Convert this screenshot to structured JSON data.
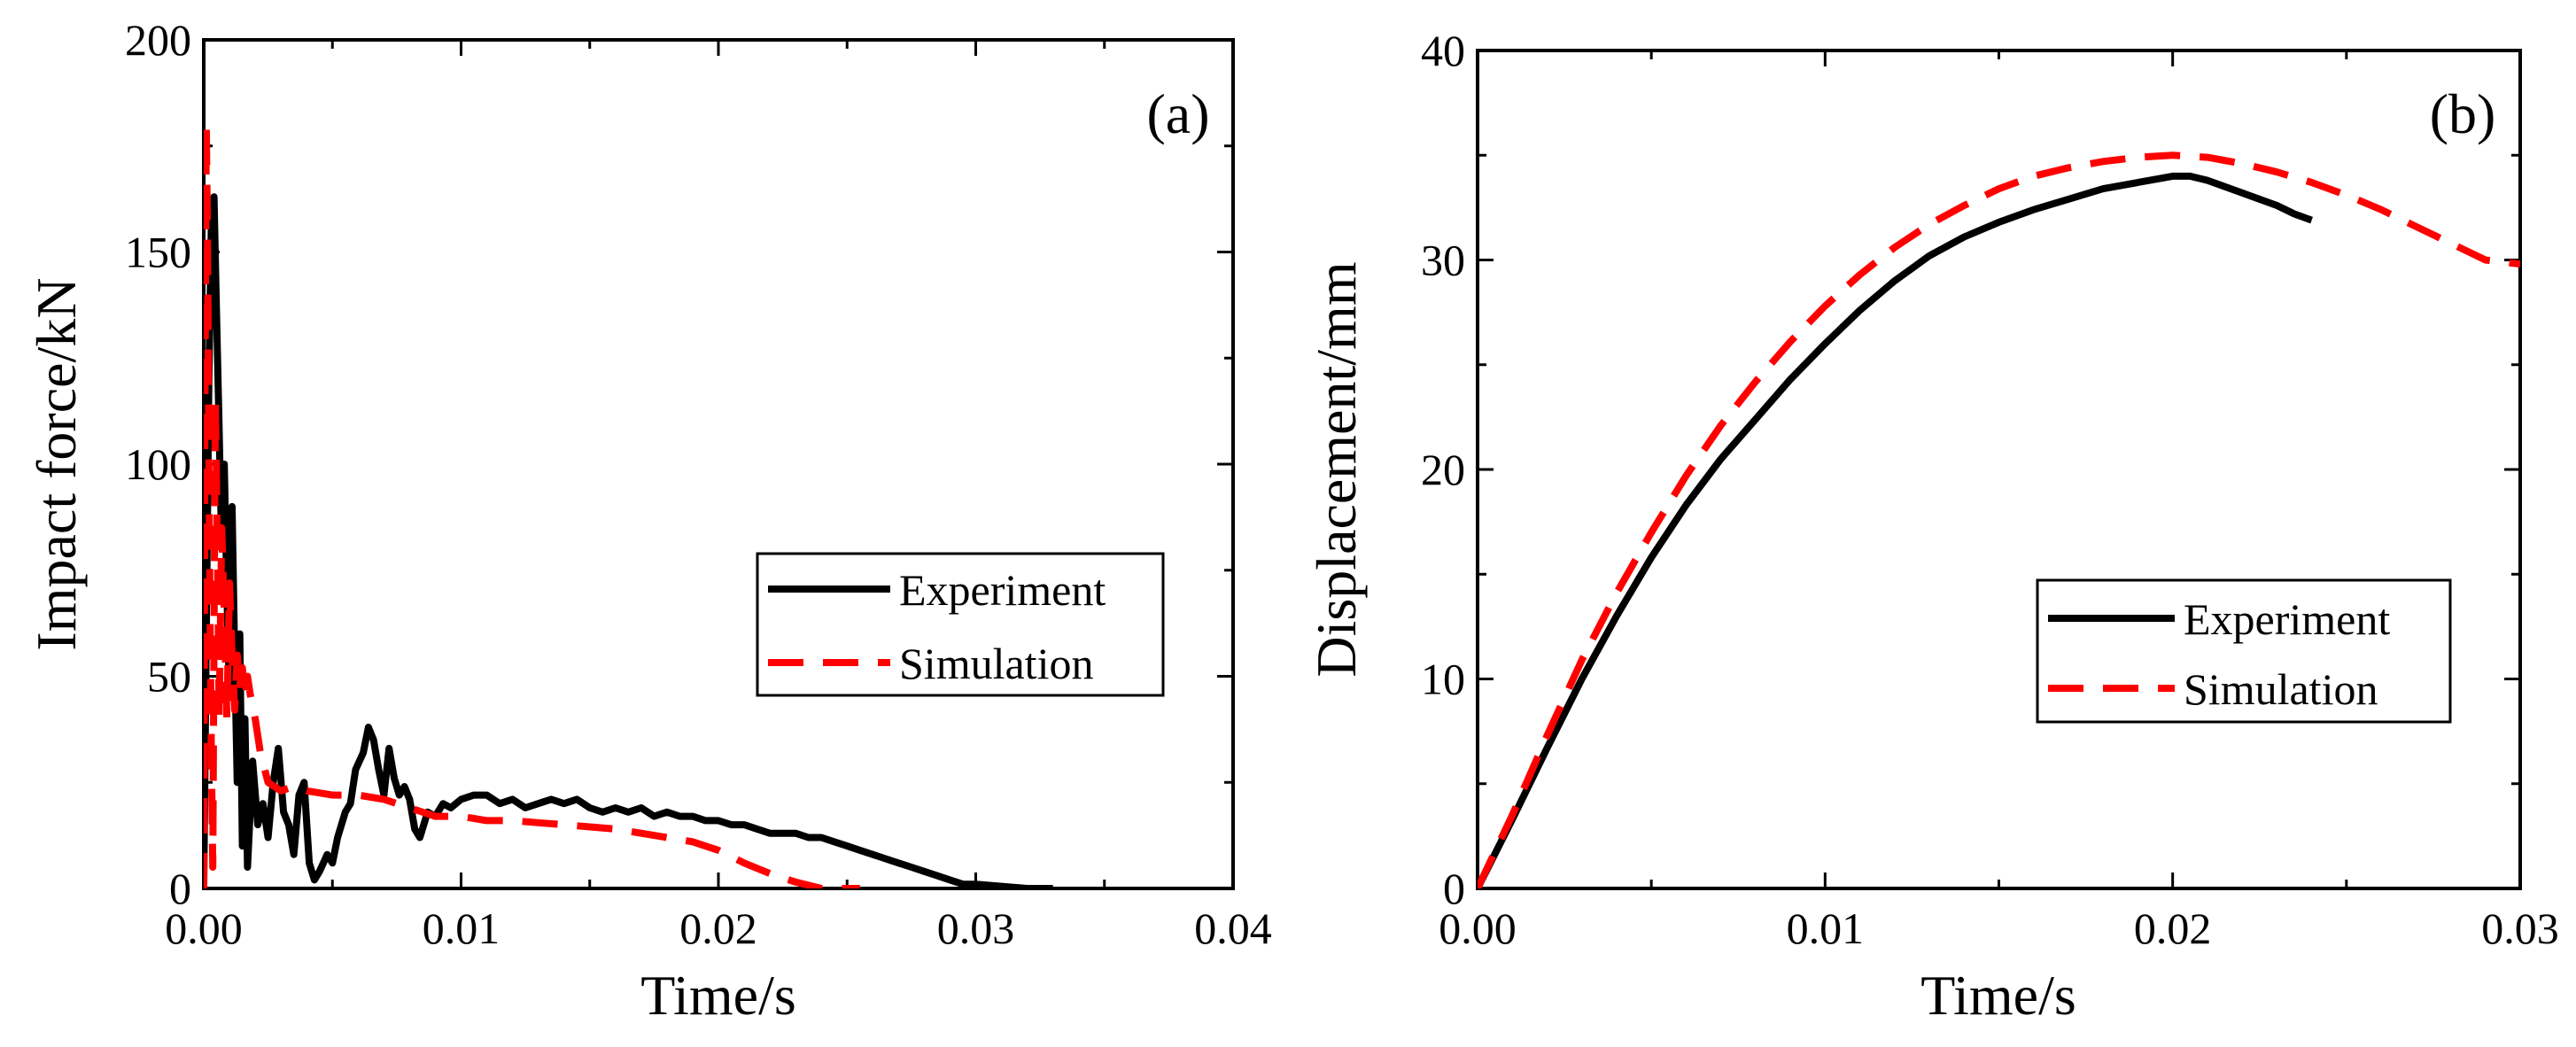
{
  "colors": {
    "experiment": "#000000",
    "simulation": "#ff0000",
    "axis": "#000000",
    "background": "#ffffff"
  },
  "chart_data": [
    {
      "type": "line",
      "panel_label": "(a)",
      "title": "",
      "xlabel": "Time/s",
      "ylabel": "Impact force/kN",
      "xlim": [
        0,
        0.04
      ],
      "ylim": [
        0,
        200
      ],
      "x_ticks": [
        "0.00",
        "0.01",
        "0.02",
        "0.03",
        "0.04"
      ],
      "y_ticks": [
        "0",
        "50",
        "100",
        "150",
        "200"
      ],
      "grid": false,
      "legend_position": "center-right",
      "series": [
        {
          "name": "Experiment",
          "style": "solid",
          "points": [
            [
              0.0,
              0
            ],
            [
              0.0001,
              60
            ],
            [
              0.0002,
              120
            ],
            [
              0.0003,
              158
            ],
            [
              0.0004,
              163
            ],
            [
              0.0005,
              135
            ],
            [
              0.0006,
              108
            ],
            [
              0.0007,
              80
            ],
            [
              0.0008,
              100
            ],
            [
              0.0009,
              70
            ],
            [
              0.001,
              45
            ],
            [
              0.0011,
              90
            ],
            [
              0.0012,
              55
            ],
            [
              0.0013,
              25
            ],
            [
              0.0014,
              60
            ],
            [
              0.0015,
              10
            ],
            [
              0.0016,
              40
            ],
            [
              0.0017,
              5
            ],
            [
              0.0019,
              30
            ],
            [
              0.0021,
              15
            ],
            [
              0.0023,
              20
            ],
            [
              0.0025,
              12
            ],
            [
              0.0027,
              25
            ],
            [
              0.0029,
              33
            ],
            [
              0.0031,
              18
            ],
            [
              0.0033,
              15
            ],
            [
              0.0035,
              8
            ],
            [
              0.0037,
              22
            ],
            [
              0.0039,
              25
            ],
            [
              0.0041,
              6
            ],
            [
              0.0043,
              2
            ],
            [
              0.0045,
              4
            ],
            [
              0.0048,
              8
            ],
            [
              0.005,
              6
            ],
            [
              0.0052,
              12
            ],
            [
              0.0055,
              18
            ],
            [
              0.0057,
              20
            ],
            [
              0.0059,
              28
            ],
            [
              0.0062,
              32
            ],
            [
              0.0064,
              38
            ],
            [
              0.0066,
              35
            ],
            [
              0.0068,
              28
            ],
            [
              0.007,
              22
            ],
            [
              0.0072,
              33
            ],
            [
              0.0074,
              26
            ],
            [
              0.0076,
              22
            ],
            [
              0.0078,
              24
            ],
            [
              0.008,
              21
            ],
            [
              0.0082,
              14
            ],
            [
              0.0084,
              12
            ],
            [
              0.0087,
              18
            ],
            [
              0.009,
              17
            ],
            [
              0.0093,
              20
            ],
            [
              0.0096,
              19
            ],
            [
              0.01,
              21
            ],
            [
              0.0105,
              22
            ],
            [
              0.011,
              22
            ],
            [
              0.0115,
              20
            ],
            [
              0.012,
              21
            ],
            [
              0.0125,
              19
            ],
            [
              0.013,
              20
            ],
            [
              0.0135,
              21
            ],
            [
              0.014,
              20
            ],
            [
              0.0145,
              21
            ],
            [
              0.015,
              19
            ],
            [
              0.0155,
              18
            ],
            [
              0.016,
              19
            ],
            [
              0.0165,
              18
            ],
            [
              0.017,
              19
            ],
            [
              0.0175,
              17
            ],
            [
              0.018,
              18
            ],
            [
              0.0185,
              17
            ],
            [
              0.019,
              17
            ],
            [
              0.0195,
              16
            ],
            [
              0.02,
              16
            ],
            [
              0.0205,
              15
            ],
            [
              0.021,
              15
            ],
            [
              0.0215,
              14
            ],
            [
              0.022,
              13
            ],
            [
              0.0225,
              13
            ],
            [
              0.023,
              13
            ],
            [
              0.0235,
              12
            ],
            [
              0.024,
              12
            ],
            [
              0.0245,
              11
            ],
            [
              0.025,
              10
            ],
            [
              0.0255,
              9
            ],
            [
              0.026,
              8
            ],
            [
              0.0265,
              7
            ],
            [
              0.027,
              6
            ],
            [
              0.0275,
              5
            ],
            [
              0.028,
              4
            ],
            [
              0.0285,
              3
            ],
            [
              0.029,
              2
            ],
            [
              0.0295,
              1
            ],
            [
              0.03,
              1
            ],
            [
              0.031,
              0.5
            ],
            [
              0.032,
              0
            ],
            [
              0.033,
              0
            ]
          ]
        },
        {
          "name": "Simulation",
          "style": "dashed",
          "points": [
            [
              0.0,
              0
            ],
            [
              5e-05,
              120
            ],
            [
              0.0001,
              180
            ],
            [
              0.00015,
              150
            ],
            [
              0.0002,
              100
            ],
            [
              0.00025,
              60
            ],
            [
              0.0003,
              30
            ],
            [
              0.00035,
              5
            ],
            [
              0.0004,
              60
            ],
            [
              0.00045,
              115
            ],
            [
              0.0005,
              95
            ],
            [
              0.00055,
              70
            ],
            [
              0.0006,
              40
            ],
            [
              0.0007,
              85
            ],
            [
              0.0008,
              65
            ],
            [
              0.0009,
              40
            ],
            [
              0.001,
              72
            ],
            [
              0.0011,
              55
            ],
            [
              0.0012,
              42
            ],
            [
              0.0013,
              55
            ],
            [
              0.0014,
              48
            ],
            [
              0.0015,
              52
            ],
            [
              0.0016,
              45
            ],
            [
              0.0017,
              50
            ],
            [
              0.0018,
              46
            ],
            [
              0.002,
              40
            ],
            [
              0.0022,
              32
            ],
            [
              0.0025,
              25
            ],
            [
              0.003,
              23
            ],
            [
              0.0035,
              24
            ],
            [
              0.004,
              23
            ],
            [
              0.005,
              22
            ],
            [
              0.006,
              22
            ],
            [
              0.007,
              21
            ],
            [
              0.008,
              19
            ],
            [
              0.009,
              17
            ],
            [
              0.01,
              17
            ],
            [
              0.011,
              16
            ],
            [
              0.012,
              16
            ],
            [
              0.013,
              15.5
            ],
            [
              0.014,
              15
            ],
            [
              0.015,
              14.5
            ],
            [
              0.016,
              14
            ],
            [
              0.017,
              13
            ],
            [
              0.018,
              12
            ],
            [
              0.019,
              11
            ],
            [
              0.02,
              9
            ],
            [
              0.021,
              6
            ],
            [
              0.022,
              3.5
            ],
            [
              0.023,
              1.5
            ],
            [
              0.024,
              0
            ],
            [
              0.0245,
              0
            ],
            [
              0.0255,
              0
            ]
          ]
        }
      ]
    },
    {
      "type": "line",
      "panel_label": "(b)",
      "title": "",
      "xlabel": "Time/s",
      "ylabel": "Displacement/mm",
      "xlim": [
        0,
        0.03
      ],
      "ylim": [
        0,
        40
      ],
      "x_ticks": [
        "0.00",
        "0.01",
        "0.02",
        "0.03"
      ],
      "y_ticks": [
        "0",
        "10",
        "20",
        "30",
        "40"
      ],
      "grid": false,
      "legend_position": "lower-right",
      "series": [
        {
          "name": "Experiment",
          "style": "solid",
          "points": [
            [
              0.0,
              0
            ],
            [
              0.001,
              3.3
            ],
            [
              0.002,
              6.7
            ],
            [
              0.003,
              10
            ],
            [
              0.004,
              13
            ],
            [
              0.005,
              15.8
            ],
            [
              0.006,
              18.3
            ],
            [
              0.007,
              20.5
            ],
            [
              0.008,
              22.4
            ],
            [
              0.009,
              24.3
            ],
            [
              0.01,
              26.0
            ],
            [
              0.011,
              27.6
            ],
            [
              0.012,
              29.0
            ],
            [
              0.013,
              30.2
            ],
            [
              0.014,
              31.1
            ],
            [
              0.015,
              31.8
            ],
            [
              0.016,
              32.4
            ],
            [
              0.017,
              32.9
            ],
            [
              0.018,
              33.4
            ],
            [
              0.019,
              33.7
            ],
            [
              0.02,
              34.0
            ],
            [
              0.0205,
              34.0
            ],
            [
              0.021,
              33.8
            ],
            [
              0.022,
              33.2
            ],
            [
              0.023,
              32.6
            ],
            [
              0.0235,
              32.2
            ],
            [
              0.024,
              31.9
            ]
          ]
        },
        {
          "name": "Simulation",
          "style": "dashed",
          "points": [
            [
              0.0,
              0
            ],
            [
              0.001,
              3.5
            ],
            [
              0.002,
              7.3
            ],
            [
              0.003,
              10.9
            ],
            [
              0.004,
              14.1
            ],
            [
              0.005,
              17.0
            ],
            [
              0.006,
              19.7
            ],
            [
              0.007,
              22.1
            ],
            [
              0.008,
              24.2
            ],
            [
              0.009,
              26.1
            ],
            [
              0.01,
              27.8
            ],
            [
              0.011,
              29.3
            ],
            [
              0.012,
              30.6
            ],
            [
              0.013,
              31.7
            ],
            [
              0.014,
              32.6
            ],
            [
              0.015,
              33.4
            ],
            [
              0.016,
              34.0
            ],
            [
              0.017,
              34.4
            ],
            [
              0.018,
              34.7
            ],
            [
              0.019,
              34.9
            ],
            [
              0.02,
              35.0
            ],
            [
              0.021,
              34.9
            ],
            [
              0.022,
              34.6
            ],
            [
              0.023,
              34.2
            ],
            [
              0.024,
              33.7
            ],
            [
              0.025,
              33.1
            ],
            [
              0.026,
              32.4
            ],
            [
              0.027,
              31.6
            ],
            [
              0.028,
              30.8
            ],
            [
              0.029,
              30.0
            ],
            [
              0.03,
              29.8
            ]
          ]
        }
      ]
    }
  ]
}
